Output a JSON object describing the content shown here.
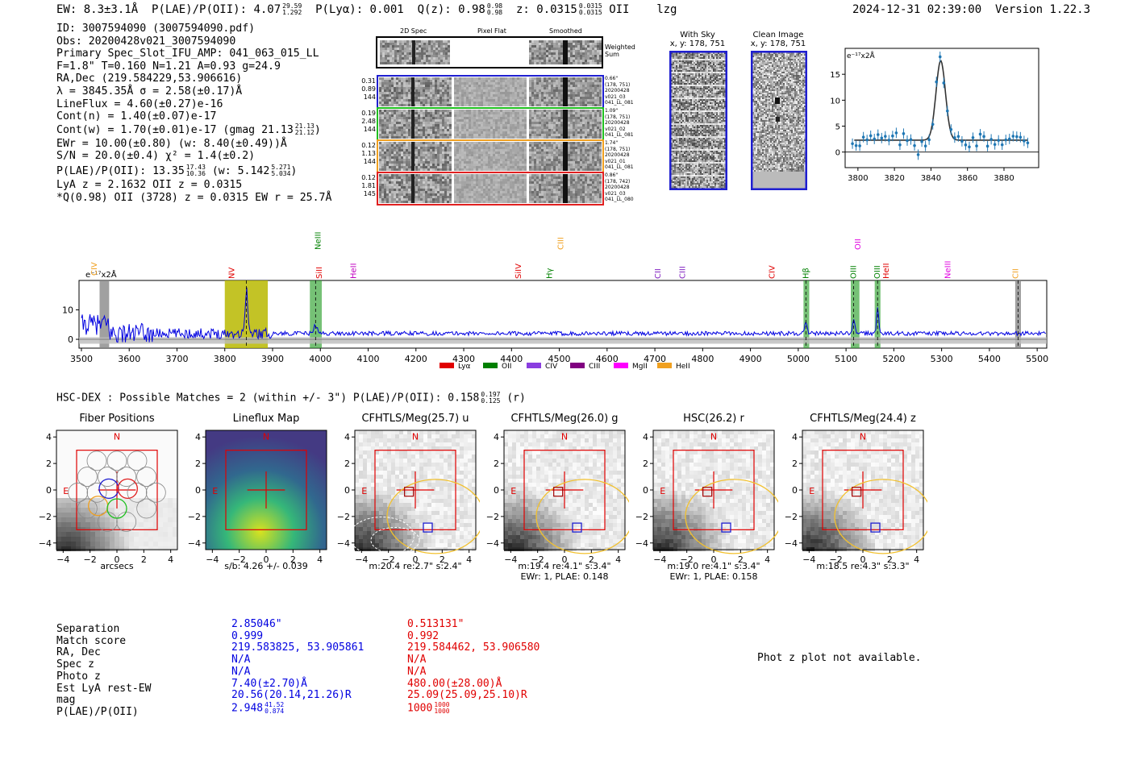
{
  "header": {
    "ew": "EW: 8.3±3.1Å",
    "plae_label": "P(LAE)/P(OII): 4.07",
    "plae_hi": "29.59",
    "plae_lo": "1.292",
    "plya": "P(Lyα): 0.001",
    "qz_label": "Q(z): 0.98",
    "qz_hi": "0.98",
    "qz_lo": "0.98",
    "z_label": "z: 0.0315",
    "z_hi": "0.0315",
    "z_lo": "0.0315",
    "z_line": "OII",
    "flag": "lzg",
    "timestamp": "2024-12-31 02:39:00",
    "version": "Version 1.22.3"
  },
  "info": {
    "id": "ID: 3007594090 (3007594090.pdf)",
    "obs": "Obs: 20200428v021_3007594090",
    "primary": "Primary Spec_Slot_IFU_AMP: 041_063_015_LL",
    "fwhm": "F=1.8\"  T=0.160  N=1.21  A=0.93  g=24.9",
    "radec": "RA,Dec (219.584229,53.906616)",
    "lambda": "λ = 3845.35Å  σ = 2.58(±0.17)Å",
    "lineflux": "LineFlux = 4.60(±0.27)e-16",
    "contn": "Cont(n) = 1.40(±0.07)e-17",
    "contw": "Cont(w) = 1.70(±0.01)e-17 (gmag 21.13",
    "contw_hi": "21.13",
    "contw_lo": "21.12",
    "contw_end": ")",
    "ewr": "EWr = 10.00(±0.80) (w: 8.40(±0.49))Å",
    "sn": "S/N = 20.0(±0.4)  χ² = 1.4(±0.2)",
    "plae": "P(LAE)/P(OII): 13.35",
    "plae_hi": "17.43",
    "plae_lo": "10.36",
    "plae_w": "(w: 5.142",
    "plae_w_hi": "5.271",
    "plae_w_lo": "5.034",
    "plae_w_end": ")",
    "lya": "LyA z = 2.1632  OII z = 0.0315",
    "q": "*Q(0.98) OII (3728) z = 0.0315  EW r = 25.7Å"
  },
  "cutouts": {
    "col_headers": [
      "2D Spec",
      "Pixel Flat",
      "Smoothed"
    ],
    "weighted_sum": "Weighted Sum",
    "rows": [
      {
        "left": [
          "0.31",
          "0.89",
          "144"
        ],
        "right": [
          "0.66\"",
          "(178, 751)",
          "20200428",
          "v021_03",
          "041_LL_081"
        ],
        "color": "#1f1fd0"
      },
      {
        "left": [
          "0.19",
          "2.48",
          "144"
        ],
        "right": [
          "1.09\"",
          "(178, 751)",
          "20200428",
          "v021_02",
          "041_LL_081"
        ],
        "color": "#20c020"
      },
      {
        "left": [
          "0.12",
          "1.13",
          "144"
        ],
        "right": [
          "1.74\"",
          "(178, 751)",
          "20200428",
          "v021_01",
          "041_LL_081"
        ],
        "color": "#f0a020"
      },
      {
        "left": [
          "0.12",
          "1.81",
          "145"
        ],
        "right": [
          "0.86\"",
          "(178, 742)",
          "20200428",
          "v021_03",
          "041_LL_080"
        ],
        "color": "#e02020"
      }
    ],
    "with_sky_title": "With Sky",
    "with_sky_coords": "x, y: 178, 751",
    "clean_title": "Clean Image",
    "clean_coords": "x, y: 178, 751"
  },
  "zoom_plot": {
    "ylabel": "e⁻¹⁷x2Å",
    "xticks": [
      3800,
      3820,
      3840,
      3860,
      3880
    ],
    "yticks": [
      0,
      5,
      10,
      15
    ],
    "xlim": [
      3793,
      3899
    ],
    "ylim": [
      -3,
      20
    ]
  },
  "full_spectrum": {
    "ylabel": "e⁻¹⁷x2Å",
    "xticks": [
      3500,
      3600,
      3700,
      3800,
      3900,
      4000,
      4100,
      4200,
      4300,
      4400,
      4500,
      4600,
      4700,
      4800,
      4900,
      5000,
      5100,
      5200,
      5300,
      5400,
      5500
    ],
    "yticks": [
      0,
      10
    ],
    "xlim": [
      3495,
      5520
    ],
    "ylim": [
      -3,
      20
    ],
    "lines": [
      {
        "name": "CIV",
        "x": 3527,
        "color": "#f0a020",
        "row": "mid"
      },
      {
        "name": "NV",
        "x": 3815,
        "color": "#e00000",
        "row": "low"
      },
      {
        "name": "NeIII",
        "x": 3995,
        "color": "#008000",
        "row": "top"
      },
      {
        "name": "SiII",
        "x": 3998,
        "color": "#e00000",
        "row": "low"
      },
      {
        "name": "HeII",
        "x": 4070,
        "color": "#c000c0",
        "row": "low"
      },
      {
        "name": "SiIV",
        "x": 4415,
        "color": "#e00000",
        "row": "low"
      },
      {
        "name": "CIII",
        "x": 4503,
        "color": "#f0a020",
        "row": "top"
      },
      {
        "name": "Hγ",
        "x": 4480,
        "color": "#008000",
        "row": "low"
      },
      {
        "name": "CII",
        "x": 4707,
        "color": "#8020c0",
        "row": "low"
      },
      {
        "name": "CIII",
        "x": 4758,
        "color": "#8020c0",
        "row": "low"
      },
      {
        "name": "CIV",
        "x": 4945,
        "color": "#e00000",
        "row": "low"
      },
      {
        "name": "Hβ",
        "x": 5016,
        "color": "#008000",
        "row": "low"
      },
      {
        "name": "OII",
        "x": 5125,
        "color": "#e000e0",
        "row": "top"
      },
      {
        "name": "OIII",
        "x": 5116,
        "color": "#008000",
        "row": "low"
      },
      {
        "name": "OIII",
        "x": 5166,
        "color": "#008000",
        "row": "low"
      },
      {
        "name": "HeII",
        "x": 5184,
        "color": "#e00000",
        "row": "low"
      },
      {
        "name": "NeIII",
        "x": 5313,
        "color": "#e000e0",
        "row": "low"
      },
      {
        "name": "CII",
        "x": 5455,
        "color": "#f0a020",
        "row": "low"
      }
    ],
    "legend": [
      {
        "name": "Lyα",
        "color": "#e00000"
      },
      {
        "name": "OII",
        "color": "#008000"
      },
      {
        "name": "CIV",
        "color": "#8a3ee0"
      },
      {
        "name": "CIII",
        "color": "#800080"
      },
      {
        "name": "MgII",
        "color": "#ff00ff"
      },
      {
        "name": "HeII",
        "color": "#f0a020"
      }
    ]
  },
  "hsc": {
    "label": "HSC-DEX : Possible Matches = 2 (within +/- 3\")  P(LAE)/P(OII): 0.158",
    "hi": "0.197",
    "lo": "0.125",
    "band": "(r)"
  },
  "panels": [
    {
      "title": "Fiber Positions",
      "cap1": "arcsecs",
      "cap2": ""
    },
    {
      "title": "Lineflux Map",
      "cap1": "s/b: 4.26 +/- 0.039",
      "cap2": ""
    },
    {
      "title": "CFHTLS/Meg(25.7) u",
      "cap1": "m:20.4  re:2.7\"  s:2.4\"",
      "cap2": ""
    },
    {
      "title": "CFHTLS/Meg(26.0) g",
      "cap1": "m:19.4  re:4.1\"  s:3.4\"",
      "cap2": "EWr: 1, PLAE: 0.148"
    },
    {
      "title": "HSC(26.2) r",
      "cap1": "m:19.0  re:4.1\"  s:3.4\"",
      "cap2": "EWr: 1, PLAE: 0.158"
    },
    {
      "title": "CFHTLS/Meg(24.4) z",
      "cap1": "m:18.5  re:4.3\"  s:3.3\"",
      "cap2": ""
    }
  ],
  "panel_axes": {
    "ticks": [
      -4,
      -2,
      0,
      2,
      4
    ],
    "north": "N",
    "east": "E"
  },
  "table": {
    "labels": [
      "Separation",
      "Match score",
      "RA, Dec",
      "Spec z",
      "Photo z",
      "Est LyA rest-EW",
      "mag",
      "P(LAE)/P(OII)"
    ],
    "blue": [
      "2.85046\"",
      "0.999",
      "219.583825, 53.905861",
      "N/A",
      "N/A",
      "7.40(±2.70)Å",
      "20.56(20.14,21.26)R",
      "2.948"
    ],
    "blue_plae_hi": "41.52",
    "blue_plae_lo": "0.874",
    "red": [
      "0.513131\"",
      "0.992",
      "219.584462, 53.906580",
      "N/A",
      "N/A",
      "480.00(±28.00)Å",
      "25.09(25.09,25.10)R",
      "1000"
    ],
    "red_plae_hi": "1000",
    "red_plae_lo": "1000"
  },
  "phot_z": "Phot z plot not available."
}
